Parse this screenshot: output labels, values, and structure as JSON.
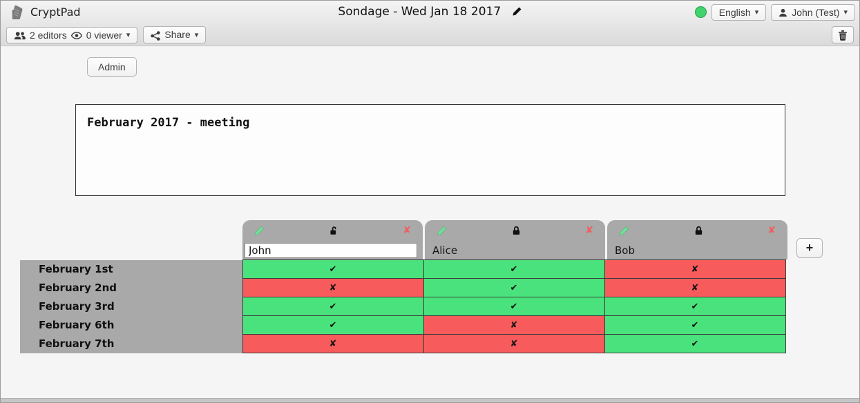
{
  "topbar": {
    "app_name": "CryptPad",
    "title": "Sondage - Wed Jan 18 2017",
    "status_dot_color": "#41d36e",
    "language_button": {
      "label": "English",
      "caret": "▾"
    },
    "user_button": {
      "label": "John (Test)",
      "caret": "▾"
    }
  },
  "toolbar": {
    "editors_label": "2 editors",
    "viewers_label": "0 viewer",
    "caret": "▾",
    "share_label": "Share"
  },
  "admin_button_label": "Admin",
  "description_text": "February 2017 - meeting",
  "poll": {
    "columns": [
      {
        "name": "John",
        "locked": false,
        "name_editable": true
      },
      {
        "name": "Alice",
        "locked": true,
        "name_editable": false
      },
      {
        "name": "Bob",
        "locked": true,
        "name_editable": false
      }
    ],
    "rows": [
      {
        "label": "February 1st",
        "votes": [
          "yes",
          "yes",
          "no"
        ]
      },
      {
        "label": "February 2nd",
        "votes": [
          "no",
          "yes",
          "no"
        ]
      },
      {
        "label": "February 3rd",
        "votes": [
          "yes",
          "yes",
          "yes"
        ]
      },
      {
        "label": "February 6th",
        "votes": [
          "yes",
          "no",
          "yes"
        ]
      },
      {
        "label": "February 7th",
        "votes": [
          "no",
          "no",
          "yes"
        ]
      }
    ],
    "add_column_label": "+",
    "yes_glyph": "✔",
    "no_glyph": "✘",
    "yes_color": "#4ae27c",
    "no_color": "#f85b5b",
    "remove_column_glyph": "✘",
    "remove_color": "#f25c5c"
  }
}
